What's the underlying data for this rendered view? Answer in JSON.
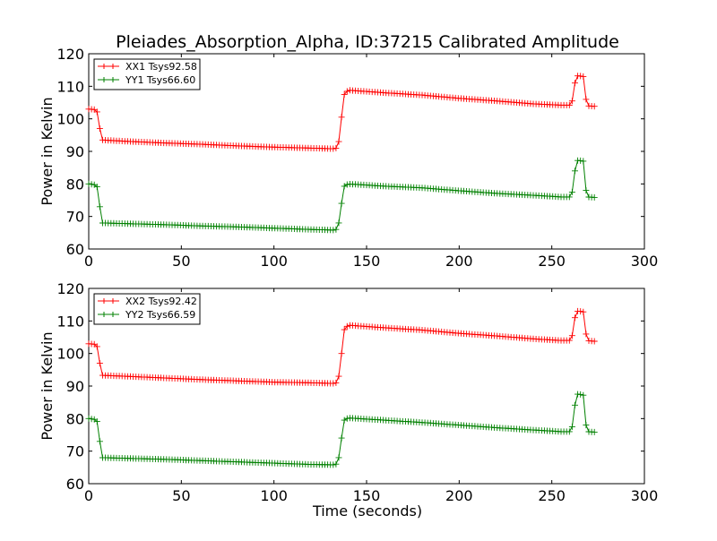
{
  "title": "Pleiades_Absorption_Alpha, ID:37215 Calibrated Amplitude",
  "xlabel": "Time (seconds)",
  "ylabel": "Power in Kelvin",
  "colors": {
    "xx": "#ff0000",
    "yy": "#008000"
  },
  "chart_data": [
    {
      "type": "line",
      "xlim": [
        0,
        300
      ],
      "ylim": [
        60,
        120
      ],
      "xticks": [
        "0",
        "50",
        "100",
        "150",
        "200",
        "250",
        "300"
      ],
      "yticks": [
        "60",
        "70",
        "80",
        "90",
        "100",
        "110",
        "120"
      ],
      "xlabel": "",
      "ylabel": "Power in Kelvin",
      "legend_position": "top-left",
      "series": [
        {
          "name": "XX1 Tsys92.58",
          "color": "#ff0000",
          "x": [
            0,
            4,
            5,
            6,
            7,
            20,
            40,
            60,
            80,
            100,
            120,
            133,
            134,
            135,
            136,
            137,
            138,
            140,
            160,
            180,
            200,
            220,
            240,
            255,
            260,
            261,
            262,
            263,
            264,
            265,
            267,
            268,
            269,
            274
          ],
          "y": [
            103,
            102.8,
            101.5,
            97,
            93.5,
            93.1,
            92.6,
            92.2,
            91.7,
            91.3,
            91.0,
            90.8,
            91.2,
            93,
            98,
            103,
            107.5,
            108.8,
            108.0,
            107.3,
            106.3,
            105.5,
            104.6,
            104.2,
            104.2,
            105.5,
            109,
            113,
            113.2,
            113.2,
            113.0,
            108,
            104,
            103.8
          ]
        },
        {
          "name": "YY1 Tsys66.60",
          "color": "#008000",
          "x": [
            0,
            4,
            5,
            6,
            7,
            20,
            40,
            60,
            80,
            100,
            120,
            133,
            134,
            135,
            136,
            137,
            138,
            140,
            160,
            180,
            200,
            220,
            240,
            255,
            260,
            261,
            262,
            263,
            264,
            265,
            267,
            268,
            269,
            274
          ],
          "y": [
            80,
            79.7,
            78.5,
            73,
            68,
            67.8,
            67.5,
            67.1,
            66.8,
            66.4,
            66.0,
            65.8,
            66.2,
            68,
            72,
            76,
            79.3,
            80.0,
            79.3,
            78.8,
            77.9,
            77.1,
            76.5,
            76.0,
            76.0,
            77.5,
            81,
            87,
            87.2,
            87.2,
            87.0,
            80,
            76,
            75.8
          ]
        }
      ]
    },
    {
      "type": "line",
      "xlim": [
        0,
        300
      ],
      "ylim": [
        60,
        120
      ],
      "xticks": [
        "0",
        "50",
        "100",
        "150",
        "200",
        "250",
        "300"
      ],
      "yticks": [
        "60",
        "70",
        "80",
        "90",
        "100",
        "110",
        "120"
      ],
      "xlabel": "Time (seconds)",
      "ylabel": "Power in Kelvin",
      "legend_position": "top-left",
      "series": [
        {
          "name": "XX2 Tsys92.42",
          "color": "#ff0000",
          "x": [
            0,
            4,
            5,
            6,
            7,
            20,
            40,
            60,
            80,
            100,
            120,
            133,
            134,
            135,
            136,
            137,
            138,
            140,
            160,
            180,
            200,
            220,
            240,
            255,
            260,
            261,
            262,
            263,
            264,
            265,
            267,
            268,
            269,
            274
          ],
          "y": [
            103,
            102.8,
            101.5,
            97,
            93.3,
            93.0,
            92.5,
            92.0,
            91.6,
            91.2,
            91.0,
            90.8,
            91.2,
            93,
            97.5,
            102.5,
            107.3,
            108.7,
            107.9,
            107.2,
            106.2,
            105.4,
            104.5,
            104.0,
            104.0,
            105.5,
            109,
            113,
            113.0,
            113.0,
            112.8,
            108,
            104,
            103.7
          ]
        },
        {
          "name": "YY2 Tsys66.59",
          "color": "#008000",
          "x": [
            0,
            4,
            5,
            6,
            7,
            20,
            40,
            60,
            80,
            100,
            120,
            133,
            134,
            135,
            136,
            137,
            138,
            140,
            160,
            180,
            200,
            220,
            240,
            255,
            260,
            261,
            262,
            263,
            264,
            265,
            267,
            268,
            269,
            274
          ],
          "y": [
            80,
            79.7,
            78.5,
            73,
            68,
            67.8,
            67.5,
            67.1,
            66.7,
            66.3,
            65.9,
            65.8,
            66.2,
            68,
            72,
            76,
            79.5,
            80.2,
            79.5,
            78.8,
            78.0,
            77.2,
            76.5,
            76.0,
            76.0,
            77.5,
            81,
            87.3,
            87.5,
            87.5,
            87.2,
            80,
            76,
            75.8
          ]
        }
      ]
    }
  ]
}
